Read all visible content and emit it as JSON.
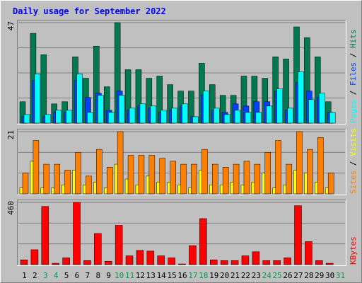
{
  "chart_data": {
    "type": "bar",
    "title": "Daily usage for September 2022",
    "categories": [
      "1",
      "2",
      "3",
      "4",
      "5",
      "6",
      "7",
      "8",
      "9",
      "10",
      "11",
      "12",
      "13",
      "14",
      "15",
      "16",
      "17",
      "18",
      "19",
      "20",
      "21",
      "22",
      "23",
      "24",
      "25",
      "26",
      "27",
      "28",
      "29",
      "30",
      "31"
    ],
    "weekend_days": [
      "3",
      "4",
      "10",
      "11",
      "17",
      "18",
      "24",
      "25",
      "31"
    ],
    "panels": [
      {
        "id": "hits",
        "ymax_label": "47",
        "ylim": [
          0,
          47
        ],
        "legend": [
          "Pages",
          "Files",
          "Hits"
        ],
        "series": [
          {
            "name": "Hits",
            "color": "#007850",
            "values": [
              10,
              42,
              32,
              9,
              10,
              31,
              21,
              36,
              17,
              47,
              25,
              25,
              21,
              22,
              18,
              15,
              15,
              28,
              18,
              13,
              13,
              22,
              22,
              21,
              31,
              30,
              45,
              40,
              31,
              10,
              0
            ]
          },
          {
            "name": "Files",
            "color": "#0040ff",
            "values": [
              3,
              20,
              3,
              5,
              5,
              20,
              12,
              14,
              6,
              15,
              6,
              8,
              7,
              5,
              6,
              8,
              3,
              13,
              6,
              5,
              9,
              8,
              10,
              10,
              15,
              6,
              19,
              15,
              12,
              5,
              0
            ]
          },
          {
            "name": "Pages",
            "color": "#00ffff",
            "values": [
              4,
              23,
              4,
              6,
              6,
              23,
              5,
              13,
              5,
              13,
              7,
              9,
              8,
              6,
              7,
              9,
              3,
              15,
              7,
              4,
              6,
              5,
              5,
              8,
              16,
              7,
              24,
              11,
              14,
              5,
              0
            ]
          }
        ]
      },
      {
        "id": "visits",
        "ymax_label": "21",
        "ylim": [
          0,
          21
        ],
        "legend": [
          "Sites",
          "Visits"
        ],
        "series": [
          {
            "name": "Visits",
            "color": "#ffff00",
            "values": [
              2,
              11,
              2,
              2,
              3,
              8,
              3,
              4,
              2,
              10,
              5,
              3,
              6,
              4,
              4,
              3,
              2,
              8,
              3,
              3,
              4,
              3,
              4,
              7,
              2,
              3,
              8,
              7,
              4,
              2,
              0
            ]
          },
          {
            "name": "Sites",
            "color": "#ff8000",
            "values": [
              7,
              18,
              10,
              10,
              8,
              14,
              6,
              15,
              9,
              21,
              13,
              13,
              13,
              12,
              11,
              10,
              10,
              15,
              10,
              9,
              10,
              11,
              10,
              14,
              18,
              10,
              21,
              15,
              19,
              7,
              0
            ]
          }
        ]
      },
      {
        "id": "kbytes",
        "ymax_label": "460",
        "ylim": [
          0,
          460
        ],
        "legend": [
          "KBytes"
        ],
        "series": [
          {
            "name": "KBytes",
            "color": "#ff0000",
            "values": [
              35,
              110,
              430,
              10,
              50,
              460,
              30,
              230,
              25,
              290,
              65,
              105,
              100,
              65,
              50,
              5,
              140,
              340,
              35,
              30,
              30,
              65,
              95,
              30,
              30,
              50,
              435,
              170,
              30,
              10,
              0
            ]
          }
        ]
      }
    ]
  }
}
